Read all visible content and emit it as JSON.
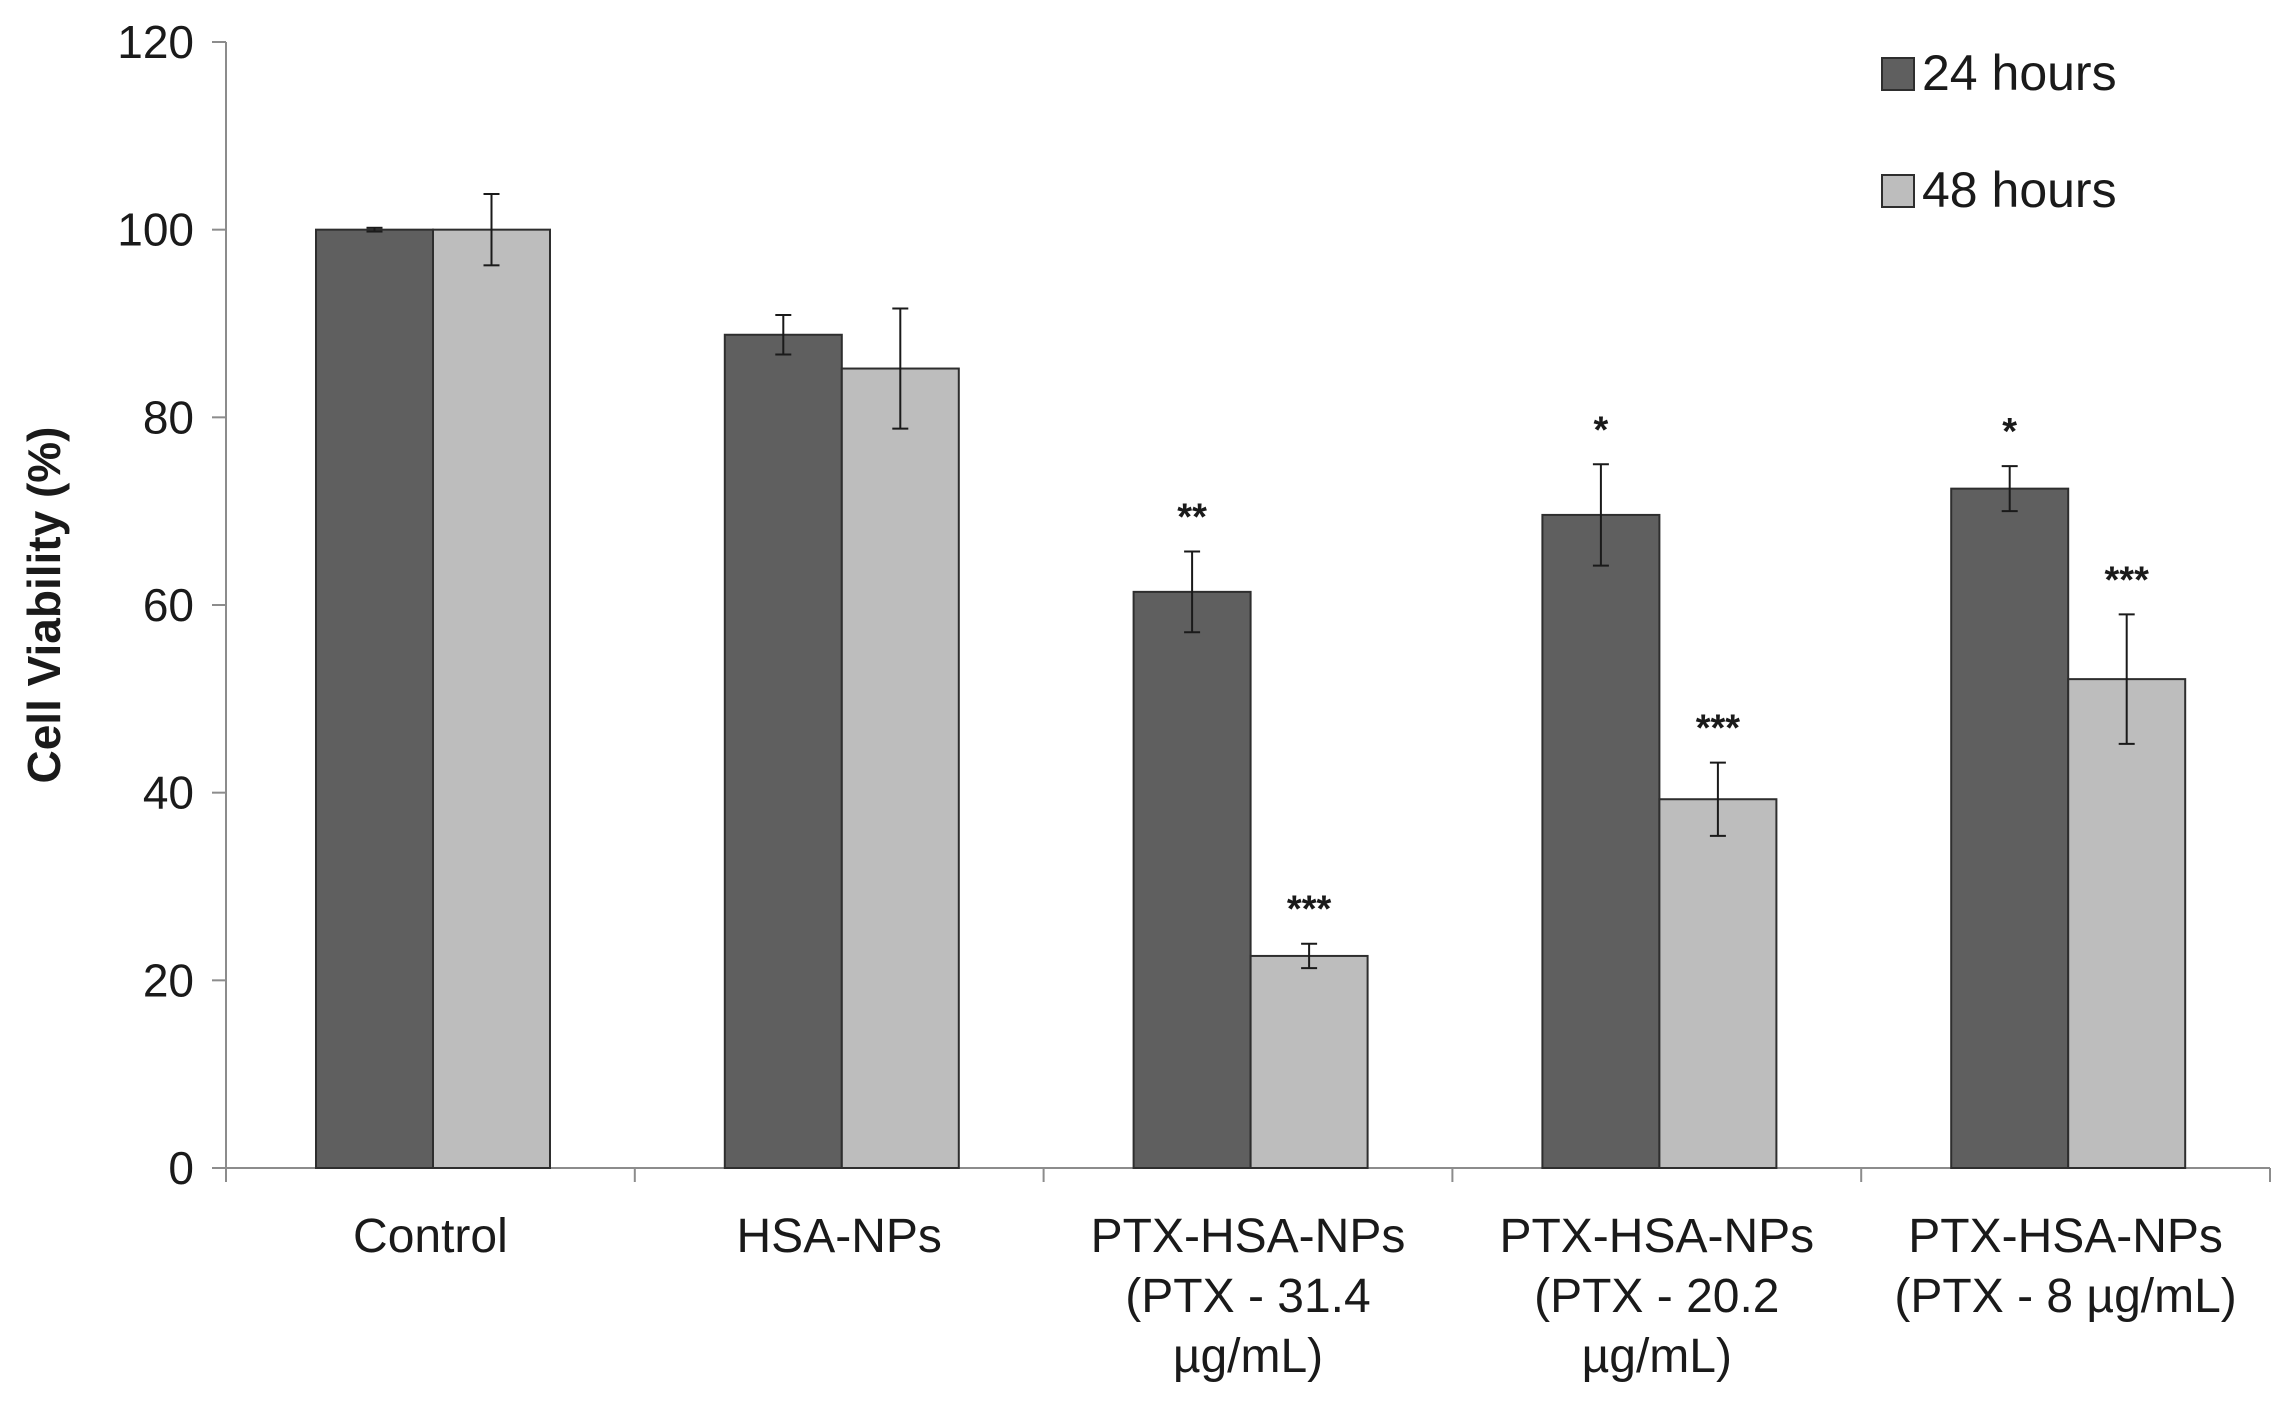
{
  "chart_data": {
    "type": "bar",
    "title": "",
    "xlabel": "",
    "ylabel": "Cell Viability (%)",
    "ylim": [
      0,
      120
    ],
    "yticks": [
      0,
      20,
      40,
      60,
      80,
      100,
      120
    ],
    "categories": [
      [
        "Control"
      ],
      [
        "HSA-NPs"
      ],
      [
        "PTX-HSA-NPs",
        "(PTX - 31.4",
        "µg/mL)"
      ],
      [
        "PTX-HSA-NPs",
        "(PTX - 20.2",
        "µg/mL)"
      ],
      [
        "PTX-HSA-NPs",
        "(PTX - 8 µg/mL)"
      ]
    ],
    "series": [
      {
        "name": "24 hours",
        "color": "#5f5f5f",
        "values": [
          100,
          88.8,
          61.4,
          69.6,
          72.4
        ],
        "errors": [
          0.2,
          2.1,
          4.3,
          5.4,
          2.4
        ],
        "significance": [
          "",
          "",
          "**",
          "*",
          "*"
        ]
      },
      {
        "name": "48 hours",
        "color": "#bdbdbd",
        "values": [
          100,
          85.2,
          22.6,
          39.3,
          52.1
        ],
        "errors": [
          3.8,
          6.4,
          1.3,
          3.9,
          6.9
        ],
        "significance": [
          "",
          "",
          "***",
          "***",
          "***"
        ]
      }
    ],
    "legend_position": "top-right",
    "grid": false
  }
}
